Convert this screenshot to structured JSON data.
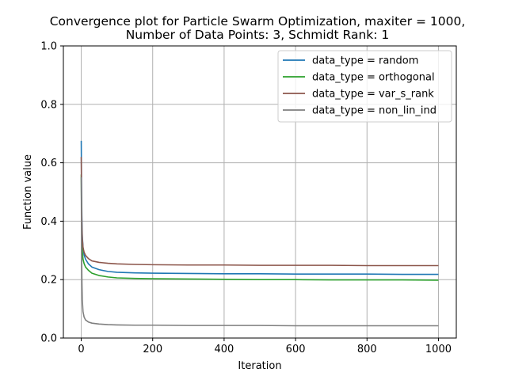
{
  "chart_data": {
    "type": "line",
    "title": "Convergence plot for Particle Swarm Optimization, maxiter = 1000,",
    "subtitle": "Number of Data Points: 3, Schmidt Rank: 1",
    "xlabel": "Iteration",
    "ylabel": "Function value",
    "xlim": [
      -50,
      1050
    ],
    "ylim": [
      0.0,
      1.0
    ],
    "xticks": [
      0,
      200,
      400,
      600,
      800,
      1000
    ],
    "xtick_labels": [
      "0",
      "200",
      "400",
      "600",
      "800",
      "1000"
    ],
    "yticks": [
      0.0,
      0.2,
      0.4,
      0.6,
      0.8,
      1.0
    ],
    "ytick_labels": [
      "0.0",
      "0.2",
      "0.4",
      "0.6",
      "0.8",
      "1.0"
    ],
    "grid": true,
    "legend_position": "top-right",
    "series": [
      {
        "name": "data_type = random",
        "color": "#1f77b4",
        "x": [
          0,
          1,
          2,
          3,
          5,
          8,
          12,
          20,
          30,
          50,
          75,
          100,
          150,
          200,
          300,
          400,
          500,
          600,
          700,
          800,
          900,
          1000
        ],
        "y": [
          0.675,
          0.49,
          0.4,
          0.35,
          0.31,
          0.285,
          0.27,
          0.254,
          0.243,
          0.234,
          0.228,
          0.225,
          0.223,
          0.222,
          0.221,
          0.22,
          0.22,
          0.219,
          0.219,
          0.219,
          0.218,
          0.218
        ]
      },
      {
        "name": "data_type = orthogonal",
        "color": "#2ca02c",
        "x": [
          0,
          1,
          2,
          3,
          5,
          8,
          12,
          20,
          30,
          50,
          75,
          100,
          150,
          200,
          300,
          400,
          500,
          600,
          700,
          800,
          900,
          1000
        ],
        "y": [
          0.56,
          0.4,
          0.33,
          0.3,
          0.27,
          0.255,
          0.243,
          0.232,
          0.222,
          0.214,
          0.209,
          0.206,
          0.204,
          0.203,
          0.202,
          0.201,
          0.2,
          0.2,
          0.199,
          0.199,
          0.199,
          0.198
        ]
      },
      {
        "name": "data_type = var_s_rank",
        "color": "#8c564b",
        "x": [
          0,
          1,
          2,
          3,
          5,
          8,
          12,
          20,
          30,
          50,
          75,
          100,
          150,
          200,
          300,
          400,
          500,
          600,
          700,
          800,
          900,
          1000
        ],
        "y": [
          0.62,
          0.45,
          0.38,
          0.34,
          0.31,
          0.294,
          0.283,
          0.272,
          0.264,
          0.259,
          0.256,
          0.254,
          0.252,
          0.251,
          0.25,
          0.25,
          0.249,
          0.249,
          0.249,
          0.248,
          0.248,
          0.248
        ]
      },
      {
        "name": "data_type = non_lin_ind",
        "color": "#7f7f7f",
        "x": [
          0,
          1,
          2,
          3,
          5,
          8,
          12,
          20,
          30,
          50,
          75,
          100,
          150,
          200,
          300,
          400,
          500,
          600,
          700,
          800,
          900,
          1000
        ],
        "y": [
          0.55,
          0.3,
          0.19,
          0.13,
          0.09,
          0.072,
          0.062,
          0.055,
          0.051,
          0.048,
          0.046,
          0.045,
          0.044,
          0.044,
          0.043,
          0.043,
          0.043,
          0.042,
          0.042,
          0.042,
          0.042,
          0.042
        ]
      }
    ]
  }
}
